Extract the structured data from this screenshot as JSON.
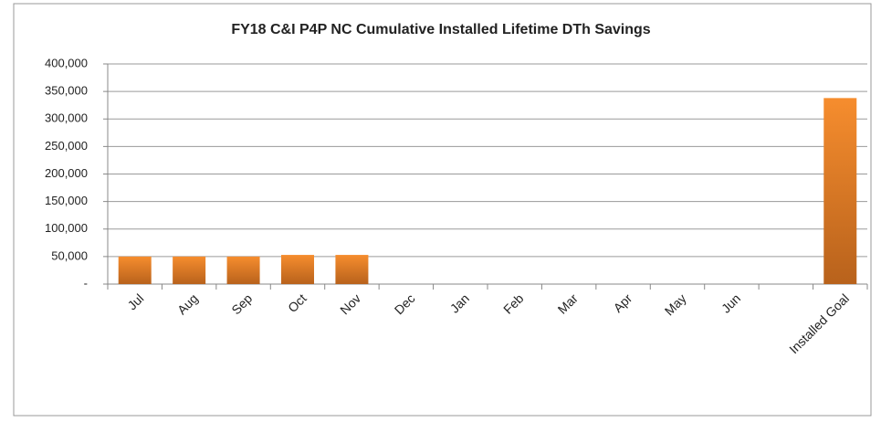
{
  "chart_data": {
    "type": "bar",
    "title": "FY18 C&I P4P NC Cumulative Installed Lifetime DTh Savings",
    "categories": [
      "Jul",
      "Aug",
      "Sep",
      "Oct",
      "Nov",
      "Dec",
      "Jan",
      "Feb",
      "Mar",
      "Apr",
      "May",
      "Jun",
      null,
      "Installed Goal"
    ],
    "values": [
      50000,
      50000,
      50000,
      53000,
      53000,
      null,
      null,
      null,
      null,
      null,
      null,
      null,
      null,
      338000
    ],
    "color": "#e8782a",
    "ylim": [
      0,
      400000
    ],
    "yticks": [
      {
        "value": 0,
        "label": "-"
      },
      {
        "value": 50000,
        "label": "50,000"
      },
      {
        "value": 100000,
        "label": "100,000"
      },
      {
        "value": 150000,
        "label": "150,000"
      },
      {
        "value": 200000,
        "label": "200,000"
      },
      {
        "value": 250000,
        "label": "250,000"
      },
      {
        "value": 300000,
        "label": "300,000"
      },
      {
        "value": 350000,
        "label": "350,000"
      },
      {
        "value": 400000,
        "label": "400,000"
      }
    ],
    "grid": true
  }
}
